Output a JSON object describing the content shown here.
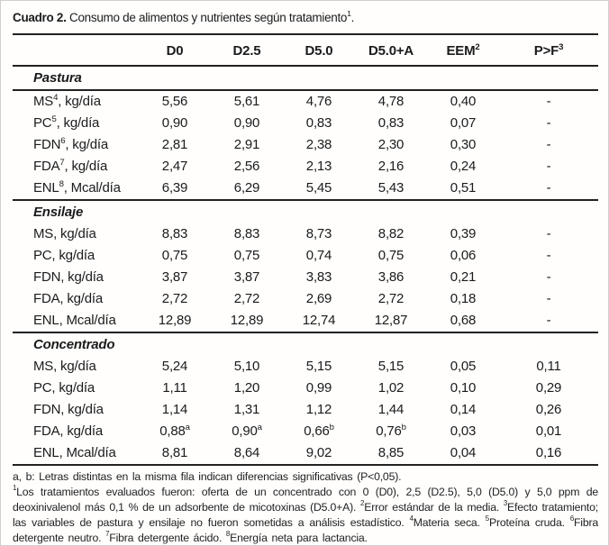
{
  "title": {
    "label": "Cuadro 2.",
    "text": " Consumo de alimentos y nutrientes según tratamiento",
    "sup": "1",
    "suffix": "."
  },
  "table": {
    "header": [
      {
        "t": ""
      },
      {
        "t": "D0"
      },
      {
        "t": "D2.5"
      },
      {
        "t": "D5.0"
      },
      {
        "t": "D5.0+A"
      },
      {
        "t": "EEM",
        "sup": "2"
      },
      {
        "t": "P>F",
        "sup": "3"
      }
    ],
    "sections": [
      {
        "title": "Pastura",
        "rule_below_title": true,
        "rows": [
          {
            "label": {
              "pre": "MS",
              "sup": "4",
              "post": ", kg/día"
            },
            "cells": [
              {
                "t": "5,56"
              },
              {
                "t": "5,61"
              },
              {
                "t": "4,76"
              },
              {
                "t": "4,78"
              },
              {
                "t": "0,40"
              },
              {
                "t": "-"
              }
            ]
          },
          {
            "label": {
              "pre": "PC",
              "sup": "5",
              "post": ", kg/día"
            },
            "cells": [
              {
                "t": "0,90"
              },
              {
                "t": "0,90"
              },
              {
                "t": "0,83"
              },
              {
                "t": "0,83"
              },
              {
                "t": "0,07"
              },
              {
                "t": "-"
              }
            ]
          },
          {
            "label": {
              "pre": "FDN",
              "sup": "6",
              "post": ", kg/día"
            },
            "cells": [
              {
                "t": "2,81"
              },
              {
                "t": "2,91"
              },
              {
                "t": "2,38"
              },
              {
                "t": "2,30"
              },
              {
                "t": "0,30"
              },
              {
                "t": "-"
              }
            ]
          },
          {
            "label": {
              "pre": "FDA",
              "sup": "7",
              "post": ", kg/día"
            },
            "cells": [
              {
                "t": "2,47"
              },
              {
                "t": "2,56"
              },
              {
                "t": "2,13"
              },
              {
                "t": "2,16"
              },
              {
                "t": "0,24"
              },
              {
                "t": "-"
              }
            ]
          },
          {
            "label": {
              "pre": "ENL",
              "sup": "8",
              "post": ", Mcal/día"
            },
            "cells": [
              {
                "t": "6,39"
              },
              {
                "t": "6,29"
              },
              {
                "t": "5,45"
              },
              {
                "t": "5,43"
              },
              {
                "t": "0,51"
              },
              {
                "t": "-"
              }
            ]
          }
        ]
      },
      {
        "title": "Ensilaje",
        "rule_below_title": false,
        "rows": [
          {
            "label": {
              "pre": "MS, kg/día"
            },
            "cells": [
              {
                "t": "8,83"
              },
              {
                "t": "8,83"
              },
              {
                "t": "8,73"
              },
              {
                "t": "8,82"
              },
              {
                "t": "0,39"
              },
              {
                "t": "-"
              }
            ]
          },
          {
            "label": {
              "pre": "PC, kg/día"
            },
            "cells": [
              {
                "t": "0,75"
              },
              {
                "t": "0,75"
              },
              {
                "t": "0,74"
              },
              {
                "t": "0,75"
              },
              {
                "t": "0,06"
              },
              {
                "t": "-"
              }
            ]
          },
          {
            "label": {
              "pre": "FDN, kg/día"
            },
            "cells": [
              {
                "t": "3,87"
              },
              {
                "t": "3,87"
              },
              {
                "t": "3,83"
              },
              {
                "t": "3,86"
              },
              {
                "t": "0,21"
              },
              {
                "t": "-"
              }
            ]
          },
          {
            "label": {
              "pre": "FDA, kg/día"
            },
            "cells": [
              {
                "t": "2,72"
              },
              {
                "t": "2,72"
              },
              {
                "t": "2,69"
              },
              {
                "t": "2,72"
              },
              {
                "t": "0,18"
              },
              {
                "t": "-"
              }
            ]
          },
          {
            "label": {
              "pre": "ENL, Mcal/día"
            },
            "cells": [
              {
                "t": "12,89"
              },
              {
                "t": "12,89"
              },
              {
                "t": "12,74"
              },
              {
                "t": "12,87"
              },
              {
                "t": "0,68"
              },
              {
                "t": "-"
              }
            ]
          }
        ]
      },
      {
        "title": "Concentrado",
        "rule_below_title": false,
        "rows": [
          {
            "label": {
              "pre": "MS, kg/día"
            },
            "cells": [
              {
                "t": "5,24"
              },
              {
                "t": "5,10"
              },
              {
                "t": "5,15"
              },
              {
                "t": "5,15"
              },
              {
                "t": "0,05"
              },
              {
                "t": "0,11"
              }
            ]
          },
          {
            "label": {
              "pre": "PC, kg/día"
            },
            "cells": [
              {
                "t": "1,11"
              },
              {
                "t": "1,20"
              },
              {
                "t": "0,99"
              },
              {
                "t": "1,02"
              },
              {
                "t": "0,10"
              },
              {
                "t": "0,29"
              }
            ]
          },
          {
            "label": {
              "pre": "FDN, kg/día"
            },
            "cells": [
              {
                "t": "1,14"
              },
              {
                "t": "1,31"
              },
              {
                "t": "1,12"
              },
              {
                "t": "1,44"
              },
              {
                "t": "0,14"
              },
              {
                "t": "0,26"
              }
            ]
          },
          {
            "label": {
              "pre": "FDA, kg/día"
            },
            "cells": [
              {
                "t": "0,88",
                "sup": "a"
              },
              {
                "t": "0,90",
                "sup": "a"
              },
              {
                "t": "0,66",
                "sup": "b"
              },
              {
                "t": "0,76",
                "sup": "b"
              },
              {
                "t": "0,03"
              },
              {
                "t": "0,01"
              }
            ]
          },
          {
            "label": {
              "pre": "ENL, Mcal/día"
            },
            "cells": [
              {
                "t": "8,81"
              },
              {
                "t": "8,64"
              },
              {
                "t": "9,02"
              },
              {
                "t": "8,85"
              },
              {
                "t": "0,04"
              },
              {
                "t": "0,16"
              }
            ]
          }
        ]
      }
    ]
  },
  "footnotes": {
    "significance": "a, b: Letras distintas en la misma fila indican diferencias significativas (P<0,05).",
    "notes": [
      {
        "sup": "1",
        "t": "Los tratamientos evaluados fueron: oferta de un concentrado con 0 (D0), 2,5 (D2.5), 5,0 (D5.0) y 5,0 ppm de deoxinivalenol más 0,1 % de un adsorbente de micotoxinas (D5.0+A). "
      },
      {
        "sup": "2",
        "t": "Error estándar de la media. "
      },
      {
        "sup": "3",
        "t": "Efecto tratamiento; las variables de pastura y ensilaje no fueron sometidas a análisis estadístico. "
      },
      {
        "sup": "4",
        "t": "Materia seca. "
      },
      {
        "sup": "5",
        "t": "Proteína cruda. "
      },
      {
        "sup": "6",
        "t": "Fibra detergente neutro. "
      },
      {
        "sup": "7",
        "t": "Fibra detergente ácido. "
      },
      {
        "sup": "8",
        "t": "Energía neta para lactancia."
      }
    ]
  }
}
